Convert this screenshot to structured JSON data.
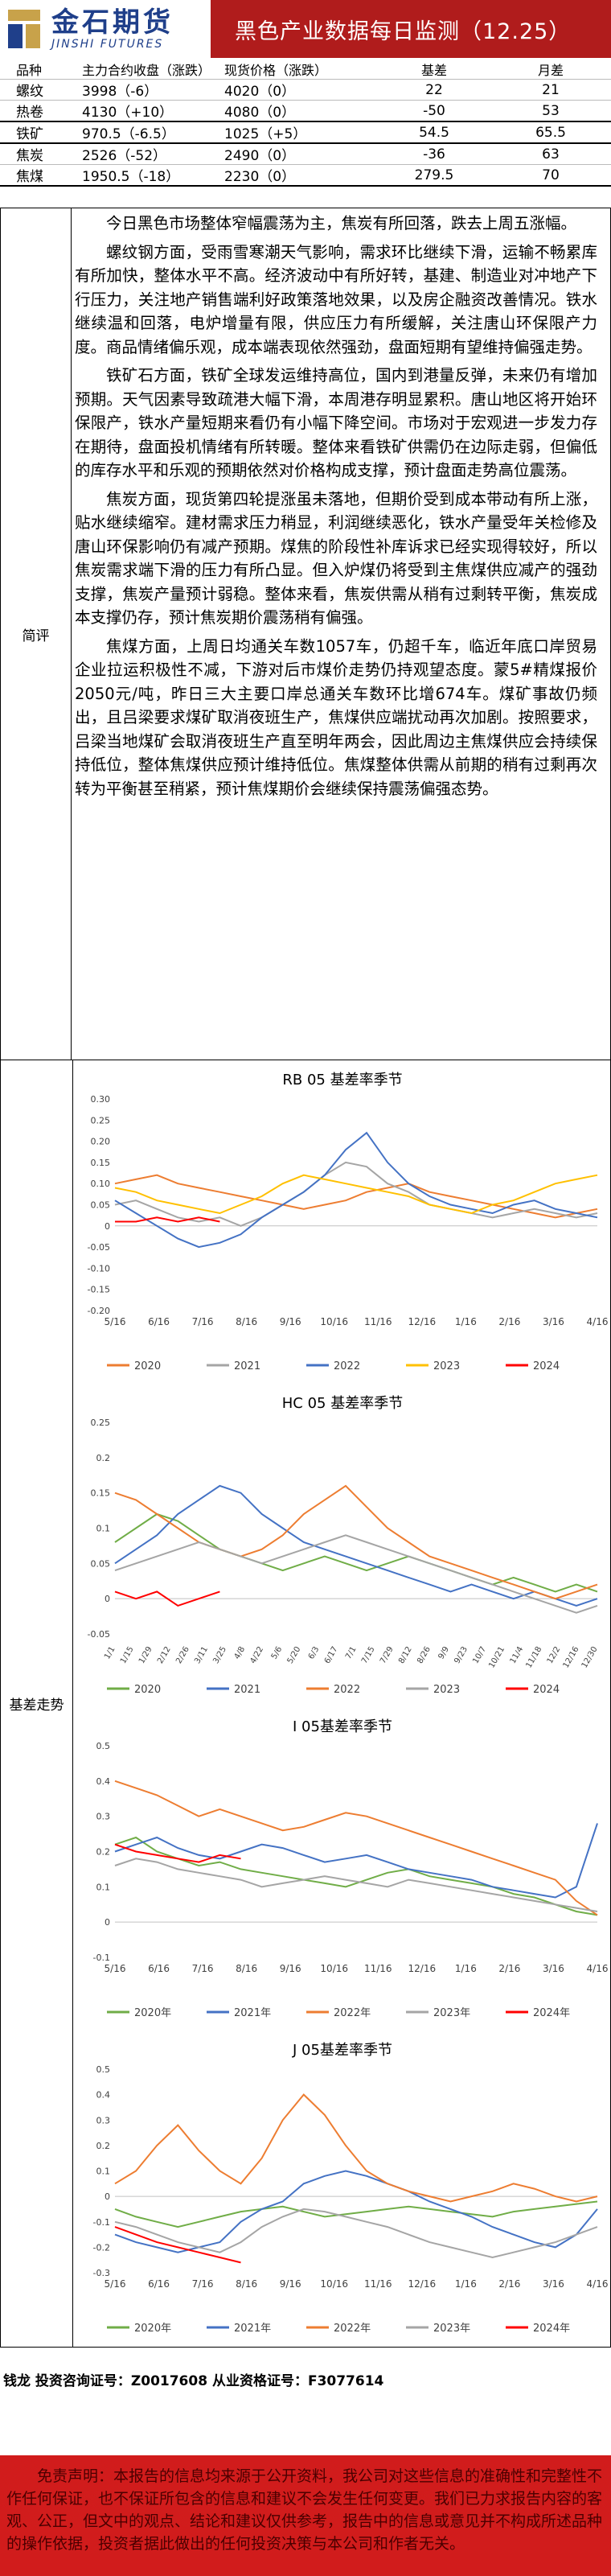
{
  "header": {
    "logo_cn": "金石期货",
    "logo_en": "JINSHI FUTURES",
    "title": "黑色产业数据每日监测（12.25）"
  },
  "table": {
    "headers": [
      "品种",
      "主力合约收盘（涨跌）",
      "现货价格（涨跌）",
      "基差",
      "月差"
    ],
    "rows": [
      [
        "螺纹",
        "3998（-6）",
        "4020（0）",
        "22",
        "21"
      ],
      [
        "热卷",
        "4130（+10）",
        "4080（0）",
        "-50",
        "53"
      ],
      [
        "铁矿",
        "970.5（-6.5）",
        "1025（+5）",
        "54.5",
        "65.5"
      ],
      [
        "焦炭",
        "2526（-52）",
        "2490（0）",
        "-36",
        "63"
      ],
      [
        "焦煤",
        "1950.5（-18）",
        "2230（0）",
        "279.5",
        "70"
      ]
    ]
  },
  "comment": {
    "label": "简评",
    "paragraphs": [
      "今日黑色市场整体窄幅震荡为主，焦炭有所回落，跌去上周五涨幅。",
      "螺纹钢方面，受雨雪寒潮天气影响，需求环比继续下滑，运输不畅累库有所加快，整体水平不高。经济波动中有所好转，基建、制造业对冲地产下行压力，关注地产销售端利好政策落地效果，以及房企融资改善情况。铁水继续温和回落，电炉增量有限，供应压力有所缓解，关注唐山环保限产力度。商品情绪偏乐观，成本端表现依然强劲，盘面短期有望维持偏强走势。",
      "铁矿石方面，铁矿全球发运维持高位，国内到港量反弹，未来仍有增加预期。天气因素导致疏港大幅下滑，本周港存明显累积。唐山地区将开始环保限产，铁水产量短期来看仍有小幅下降空间。市场对于宏观进一步发力存在期待，盘面投机情绪有所转暖。整体来看铁矿供需仍在边际走弱，但偏低的库存水平和乐观的预期依然对价格构成支撑，预计盘面走势高位震荡。",
      "焦炭方面，现货第四轮提涨虽未落地，但期价受到成本带动有所上涨，贴水继续缩窄。建材需求压力稍显，利润继续恶化，铁水产量受年关检修及唐山环保影响仍有减产预期。煤焦的阶段性补库诉求已经实现得较好，所以焦炭需求端下滑的压力有所凸显。但入炉煤仍将受到主焦煤供应减产的强劲支撑，焦炭产量预计弱稳。整体来看，焦炭供需从稍有过剩转平衡，焦炭成本支撑仍存，预计焦炭期价震荡稍有偏强。",
      "焦煤方面，上周日均通关车数1057车，仍超千车，临近年底口岸贸易企业拉运积极性不减，下游对后市煤价走势仍持观望态度。蒙5#精煤报价2050元/吨，昨日三大主要口岸总通关车数环比增674车。煤矿事故仍频出，且吕梁要求煤矿取消夜班生产，焦煤供应端扰动再次加剧。按照要求，吕梁当地煤矿会取消夜班生产直至明年两会，因此周边主焦煤供应会持续保持低位，整体焦煤供应预计维持低位。焦煤整体供需从前期的稍有过剩再次转为平衡甚至稍紧，预计焦煤期价会继续保持震荡偏强态势。"
    ]
  },
  "charts_label": "基差走势",
  "chart_data": [
    {
      "type": "line",
      "title": "RB 05 基差率季节",
      "xticks": [
        "5/16",
        "6/16",
        "7/16",
        "8/16",
        "9/16",
        "10/16",
        "11/16",
        "12/16",
        "1/16",
        "2/16",
        "3/16",
        "4/16"
      ],
      "ylim": [
        -0.2,
        0.3
      ],
      "yticks": [
        "0.30",
        "0.25",
        "0.20",
        "0.15",
        "0.10",
        "0.05",
        "0",
        "-0.05",
        "-0.10",
        "-0.15",
        "-0.20"
      ],
      "series": [
        {
          "name": "2020",
          "color": "#ed7d31",
          "values": [
            0.1,
            0.11,
            0.12,
            0.1,
            0.09,
            0.08,
            0.07,
            0.06,
            0.05,
            0.04,
            0.05,
            0.06,
            0.08,
            0.09,
            0.1,
            0.08,
            0.07,
            0.06,
            0.05,
            0.04,
            0.03,
            0.02,
            0.03,
            0.04
          ]
        },
        {
          "name": "2021",
          "color": "#a5a5a5",
          "values": [
            0.05,
            0.06,
            0.04,
            0.02,
            0.01,
            0.02,
            0.0,
            0.02,
            0.05,
            0.08,
            0.12,
            0.15,
            0.14,
            0.1,
            0.08,
            0.05,
            0.04,
            0.03,
            0.02,
            0.03,
            0.04,
            0.03,
            0.02,
            0.03
          ]
        },
        {
          "name": "2022",
          "color": "#4472c4",
          "values": [
            0.06,
            0.03,
            0.0,
            -0.03,
            -0.05,
            -0.04,
            -0.02,
            0.02,
            0.05,
            0.08,
            0.12,
            0.18,
            0.22,
            0.15,
            0.1,
            0.07,
            0.05,
            0.04,
            0.03,
            0.05,
            0.06,
            0.04,
            0.03,
            0.02
          ]
        },
        {
          "name": "2023",
          "color": "#ffc000",
          "values": [
            0.09,
            0.08,
            0.06,
            0.05,
            0.04,
            0.03,
            0.05,
            0.07,
            0.1,
            0.12,
            0.11,
            0.1,
            0.09,
            0.08,
            0.07,
            0.05,
            0.04,
            0.03,
            0.05,
            0.06,
            0.08,
            0.1,
            0.11,
            0.12
          ]
        },
        {
          "name": "2024",
          "color": "#ff0000",
          "values": [
            0.01,
            0.01,
            0.02,
            0.01,
            0.02,
            0.01,
            null,
            null,
            null,
            null,
            null,
            null,
            null,
            null,
            null,
            null,
            null,
            null,
            null,
            null,
            null,
            null,
            null,
            null
          ]
        }
      ]
    },
    {
      "type": "line",
      "title": "HC 05 基差率季节",
      "xticks": [
        "1/1",
        "1/15",
        "1/29",
        "2/12",
        "2/26",
        "3/11",
        "3/25",
        "4/8",
        "4/22",
        "5/6",
        "5/20",
        "6/3",
        "6/17",
        "7/1",
        "7/15",
        "7/29",
        "8/12",
        "8/26",
        "9/9",
        "9/23",
        "10/7",
        "10/21",
        "11/4",
        "11/18",
        "12/2",
        "12/16",
        "12/30"
      ],
      "ylim": [
        -0.05,
        0.25
      ],
      "yticks": [
        "0.25",
        "0.2",
        "0.15",
        "0.1",
        "0.05",
        "0",
        "-0.05"
      ],
      "series": [
        {
          "name": "2020",
          "color": "#70ad47",
          "values": [
            0.08,
            0.1,
            0.12,
            0.11,
            0.09,
            0.07,
            0.06,
            0.05,
            0.04,
            0.05,
            0.06,
            0.05,
            0.04,
            0.05,
            0.06,
            0.05,
            0.04,
            0.03,
            0.02,
            0.03,
            0.02,
            0.01,
            0.02,
            0.01
          ]
        },
        {
          "name": "2021",
          "color": "#4472c4",
          "values": [
            0.05,
            0.07,
            0.09,
            0.12,
            0.14,
            0.16,
            0.15,
            0.12,
            0.1,
            0.08,
            0.07,
            0.06,
            0.05,
            0.04,
            0.03,
            0.02,
            0.01,
            0.02,
            0.01,
            0.0,
            0.01,
            0.0,
            -0.01,
            0.0
          ]
        },
        {
          "name": "2022",
          "color": "#ed7d31",
          "values": [
            0.15,
            0.14,
            0.12,
            0.1,
            0.08,
            0.07,
            0.06,
            0.07,
            0.09,
            0.12,
            0.14,
            0.16,
            0.13,
            0.1,
            0.08,
            0.06,
            0.05,
            0.04,
            0.03,
            0.02,
            0.01,
            0.0,
            0.01,
            0.02
          ]
        },
        {
          "name": "2023",
          "color": "#a5a5a5",
          "values": [
            0.04,
            0.05,
            0.06,
            0.07,
            0.08,
            0.07,
            0.06,
            0.05,
            0.06,
            0.07,
            0.08,
            0.09,
            0.08,
            0.07,
            0.06,
            0.05,
            0.04,
            0.03,
            0.02,
            0.01,
            0.0,
            -0.01,
            -0.02,
            -0.01
          ]
        },
        {
          "name": "2024",
          "color": "#ff0000",
          "values": [
            0.01,
            0.0,
            0.01,
            -0.01,
            0.0,
            0.01,
            null,
            null,
            null,
            null,
            null,
            null,
            null,
            null,
            null,
            null,
            null,
            null,
            null,
            null,
            null,
            null,
            null,
            null
          ]
        }
      ]
    },
    {
      "type": "line",
      "title": "I 05基差率季节",
      "xticks": [
        "5/16",
        "6/16",
        "7/16",
        "8/16",
        "9/16",
        "10/16",
        "11/16",
        "12/16",
        "1/16",
        "2/16",
        "3/16",
        "4/16"
      ],
      "ylim": [
        -0.1,
        0.5
      ],
      "yticks": [
        "0.5",
        "0.4",
        "0.3",
        "0.2",
        "0.1",
        "0",
        "-0.1"
      ],
      "series": [
        {
          "name": "2020年",
          "color": "#70ad47",
          "values": [
            0.22,
            0.24,
            0.2,
            0.18,
            0.16,
            0.17,
            0.15,
            0.14,
            0.13,
            0.12,
            0.11,
            0.1,
            0.12,
            0.14,
            0.15,
            0.13,
            0.12,
            0.11,
            0.1,
            0.08,
            0.07,
            0.05,
            0.03,
            0.02
          ]
        },
        {
          "name": "2021年",
          "color": "#4472c4",
          "values": [
            0.2,
            0.22,
            0.24,
            0.21,
            0.19,
            0.18,
            0.2,
            0.22,
            0.21,
            0.19,
            0.17,
            0.18,
            0.19,
            0.17,
            0.15,
            0.14,
            0.13,
            0.12,
            0.1,
            0.09,
            0.08,
            0.07,
            0.1,
            0.28
          ]
        },
        {
          "name": "2022年",
          "color": "#ed7d31",
          "values": [
            0.4,
            0.38,
            0.36,
            0.33,
            0.3,
            0.32,
            0.3,
            0.28,
            0.26,
            0.27,
            0.29,
            0.31,
            0.3,
            0.28,
            0.26,
            0.24,
            0.22,
            0.2,
            0.18,
            0.16,
            0.14,
            0.12,
            0.06,
            0.02
          ]
        },
        {
          "name": "2023年",
          "color": "#a5a5a5",
          "values": [
            0.16,
            0.18,
            0.17,
            0.15,
            0.14,
            0.13,
            0.12,
            0.1,
            0.11,
            0.12,
            0.13,
            0.12,
            0.11,
            0.1,
            0.12,
            0.11,
            0.1,
            0.09,
            0.08,
            0.07,
            0.06,
            0.05,
            0.04,
            0.03
          ]
        },
        {
          "name": "2024年",
          "color": "#ff0000",
          "values": [
            0.22,
            0.2,
            0.19,
            0.18,
            0.17,
            0.19,
            0.18,
            null,
            null,
            null,
            null,
            null,
            null,
            null,
            null,
            null,
            null,
            null,
            null,
            null,
            null,
            null,
            null,
            null
          ]
        }
      ]
    },
    {
      "type": "line",
      "title": "J 05基差率季节",
      "xticks": [
        "5/16",
        "6/16",
        "7/16",
        "8/16",
        "9/16",
        "10/16",
        "11/16",
        "12/16",
        "1/16",
        "2/16",
        "3/16",
        "4/16"
      ],
      "ylim": [
        -0.3,
        0.5
      ],
      "yticks": [
        "0.5",
        "0.4",
        "0.3",
        "0.2",
        "0.1",
        "0",
        "-0.1",
        "-0.2",
        "-0.3"
      ],
      "series": [
        {
          "name": "2020年",
          "color": "#70ad47",
          "values": [
            -0.05,
            -0.08,
            -0.1,
            -0.12,
            -0.1,
            -0.08,
            -0.06,
            -0.05,
            -0.04,
            -0.06,
            -0.08,
            -0.07,
            -0.06,
            -0.05,
            -0.04,
            -0.05,
            -0.06,
            -0.07,
            -0.08,
            -0.06,
            -0.05,
            -0.04,
            -0.03,
            -0.02
          ]
        },
        {
          "name": "2021年",
          "color": "#4472c4",
          "values": [
            -0.15,
            -0.18,
            -0.2,
            -0.22,
            -0.2,
            -0.18,
            -0.1,
            -0.05,
            -0.02,
            0.05,
            0.08,
            0.1,
            0.08,
            0.05,
            0.02,
            -0.02,
            -0.05,
            -0.08,
            -0.12,
            -0.15,
            -0.18,
            -0.2,
            -0.15,
            -0.05
          ]
        },
        {
          "name": "2022年",
          "color": "#ed7d31",
          "values": [
            0.05,
            0.1,
            0.2,
            0.28,
            0.18,
            0.1,
            0.05,
            0.15,
            0.3,
            0.4,
            0.32,
            0.2,
            0.1,
            0.05,
            0.02,
            0.0,
            -0.02,
            0.0,
            0.02,
            0.05,
            0.03,
            0.0,
            -0.02,
            0.0
          ]
        },
        {
          "name": "2023年",
          "color": "#a5a5a5",
          "values": [
            -0.1,
            -0.12,
            -0.15,
            -0.18,
            -0.2,
            -0.22,
            -0.18,
            -0.12,
            -0.08,
            -0.05,
            -0.06,
            -0.08,
            -0.1,
            -0.12,
            -0.15,
            -0.18,
            -0.2,
            -0.22,
            -0.24,
            -0.22,
            -0.2,
            -0.18,
            -0.15,
            -0.12
          ]
        },
        {
          "name": "2024年",
          "color": "#ff0000",
          "values": [
            -0.12,
            -0.15,
            -0.18,
            -0.2,
            -0.22,
            -0.24,
            -0.26,
            null,
            null,
            null,
            null,
            null,
            null,
            null,
            null,
            null,
            null,
            null,
            null,
            null,
            null,
            null,
            null,
            null
          ]
        }
      ]
    }
  ],
  "analyst": "钱龙 投资咨询证号：Z0017608 从业资格证号：F3077614",
  "disclaimer": "免责声明：本报告的信息均来源于公开资料，我公司对这些信息的准确性和完整性不作任何保证，也不保证所包含的信息和建议不会发生任何变更。我们已力求报告内容的客观、公正，但文中的观点、结论和建议仅供参考，报告中的信息或意见并不构成所述品种的操作依据，投资者据此做出的任何投资决策与本公司和作者无关。"
}
